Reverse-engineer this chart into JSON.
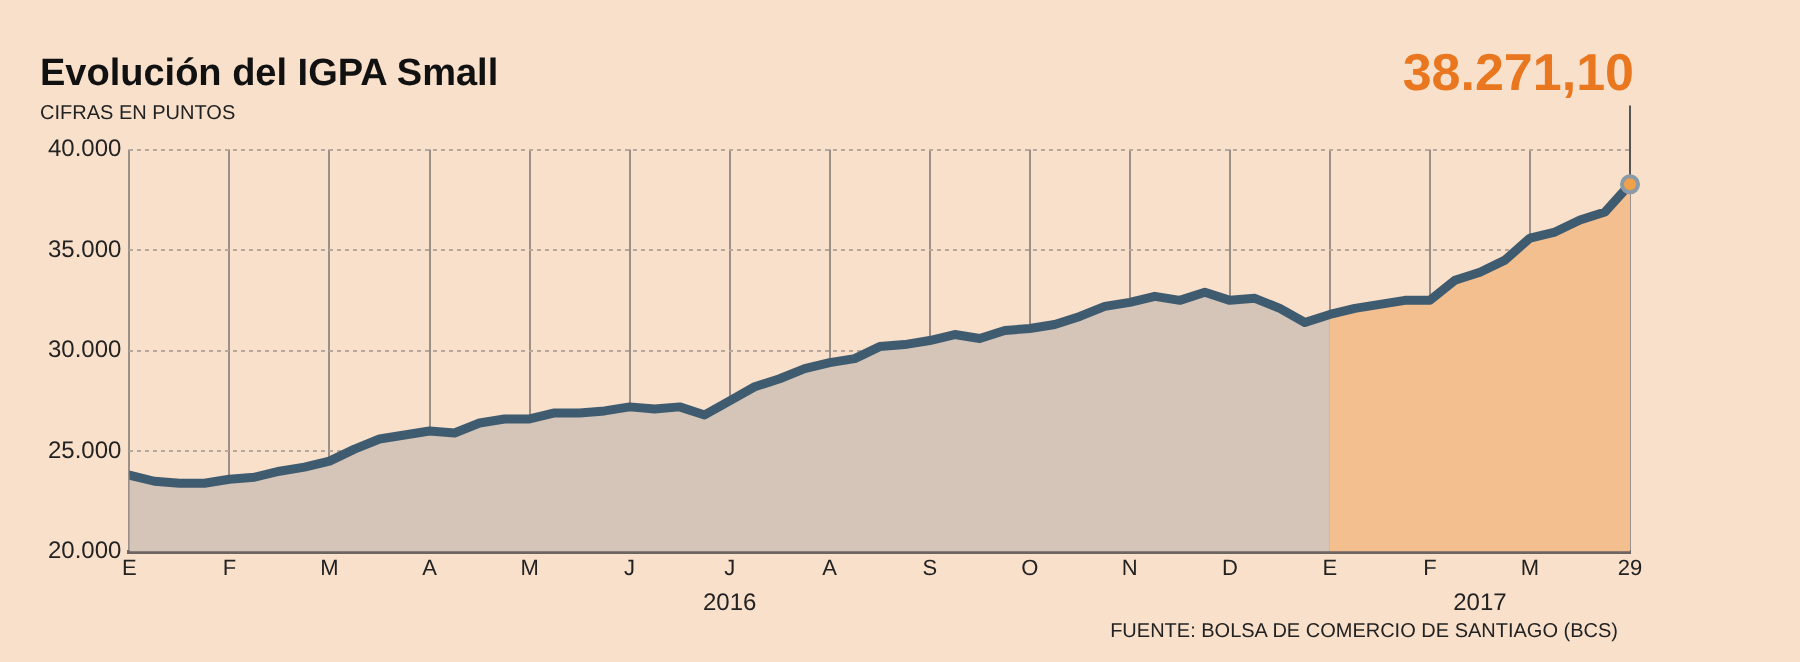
{
  "chart_data": {
    "type": "area",
    "title": "Evolución del IGPA Small",
    "subtitle": "CIFRAS EN PUNTOS",
    "categories": [
      "E",
      null,
      null,
      null,
      "F",
      null,
      null,
      null,
      "M",
      null,
      null,
      null,
      "A",
      null,
      null,
      null,
      "M",
      null,
      null,
      null,
      "J",
      null,
      null,
      null,
      "J",
      null,
      null,
      null,
      "A",
      null,
      null,
      null,
      "S",
      null,
      null,
      null,
      "O",
      null,
      null,
      null,
      "N",
      null,
      null,
      null,
      "D",
      null,
      null,
      null,
      "E",
      null,
      null,
      null,
      "F",
      null,
      null,
      null,
      "M",
      null,
      null,
      null,
      "29"
    ],
    "series": [
      {
        "color": "#d4c5b8",
        "values": [
          23800,
          23500,
          23400,
          23400,
          23600,
          23700,
          24000,
          24200,
          24500,
          25100,
          25600,
          25800,
          26000,
          25900,
          26400,
          26600,
          26600,
          26900,
          26900,
          27000,
          27200,
          27100,
          27200,
          26800,
          27500,
          28200,
          28600,
          29100,
          29400,
          29600,
          30200,
          30300,
          30500,
          30800,
          30600,
          31000,
          31100,
          31300,
          31700,
          32200,
          32400,
          32700,
          32500,
          32900,
          32500,
          32600,
          32100,
          31400,
          31800,
          null,
          null,
          null,
          null,
          null,
          null,
          null,
          null,
          null,
          null,
          null,
          null
        ]
      },
      {
        "color": "#f3bf8e",
        "values": [
          null,
          null,
          null,
          null,
          null,
          null,
          null,
          null,
          null,
          null,
          null,
          null,
          null,
          null,
          null,
          null,
          null,
          null,
          null,
          null,
          null,
          null,
          null,
          null,
          null,
          null,
          null,
          null,
          null,
          null,
          null,
          null,
          null,
          null,
          null,
          null,
          null,
          null,
          null,
          null,
          null,
          null,
          null,
          null,
          null,
          null,
          null,
          null,
          31800,
          32100,
          32300,
          32500,
          32500,
          33500,
          33900,
          34500,
          35600,
          35900,
          36500,
          36900,
          38271.1
        ]
      },
      {
        "type": "line",
        "color": "#3f5b70",
        "values": [
          23800,
          23500,
          23400,
          23400,
          23600,
          23700,
          24000,
          24200,
          24500,
          25100,
          25600,
          25800,
          26000,
          25900,
          26400,
          26600,
          26600,
          26900,
          26900,
          27000,
          27200,
          27100,
          27200,
          26800,
          27500,
          28200,
          28600,
          29100,
          29400,
          29600,
          30200,
          30300,
          30500,
          30800,
          30600,
          31000,
          31100,
          31300,
          31700,
          32200,
          32400,
          32700,
          32500,
          32900,
          32500,
          32600,
          32100,
          31400,
          31800,
          32100,
          32300,
          32500,
          32500,
          33500,
          33900,
          34500,
          35600,
          35900,
          36500,
          36900,
          38271.1
        ]
      }
    ],
    "ylim": [
      20000,
      40000
    ],
    "yticks": [
      {
        "value": 20000,
        "label": "20.000"
      },
      {
        "value": 25000,
        "label": "25.000"
      },
      {
        "value": 30000,
        "label": "30.000"
      },
      {
        "value": 35000,
        "label": "35.000"
      },
      {
        "value": 40000,
        "label": "40.000"
      }
    ],
    "grid": true,
    "legend": false,
    "annotations": [
      {
        "text": "38.271,10",
        "x": "29",
        "y": 38271.1
      },
      "2016",
      "2017",
      "FUENTE: BOLSA DE COMERCIO DE SANTIAGO (BCS)"
    ]
  }
}
